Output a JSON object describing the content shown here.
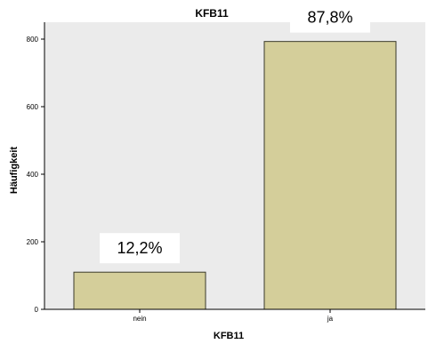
{
  "chart_data": {
    "type": "bar",
    "title": "KFB11",
    "xlabel": "KFB11",
    "ylabel": "Häufigkeit",
    "categories": [
      "nein",
      "ja"
    ],
    "values": [
      110,
      793
    ],
    "data_labels": [
      "12,2%",
      "87,8%"
    ],
    "ylim": [
      0,
      850
    ],
    "yticks": [
      0,
      200,
      400,
      600,
      800
    ],
    "grid": false,
    "legend": "none",
    "colors": {
      "plot_background": "#ebebeb",
      "bar_fill": "#d4ce9a",
      "bar_stroke": "#3a3a2a",
      "label_box": "#ffffff"
    }
  }
}
